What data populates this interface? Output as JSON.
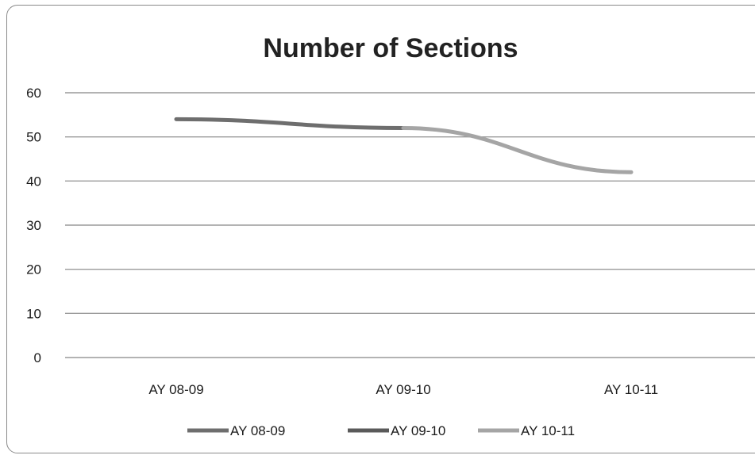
{
  "chart_data": {
    "type": "line",
    "title": "Number of Sections",
    "xlabel": "",
    "ylabel": "",
    "categories": [
      "AY 08-09",
      "AY 09-10",
      "AY 10-11"
    ],
    "y_ticks": [
      "0",
      "10",
      "20",
      "30",
      "40",
      "50",
      "60"
    ],
    "ylim": [
      0,
      60
    ],
    "grid": true,
    "legend_position": "bottom",
    "series": [
      {
        "name": "AY 08-09",
        "values": [
          54,
          52,
          null
        ],
        "color": "#6e6e6e"
      },
      {
        "name": "AY 09-10",
        "values": [
          null,
          52,
          null
        ],
        "color": "#5a5a5a"
      },
      {
        "name": "AY 10-11",
        "values": [
          null,
          52,
          42
        ],
        "color": "#a5a5a5"
      }
    ]
  }
}
